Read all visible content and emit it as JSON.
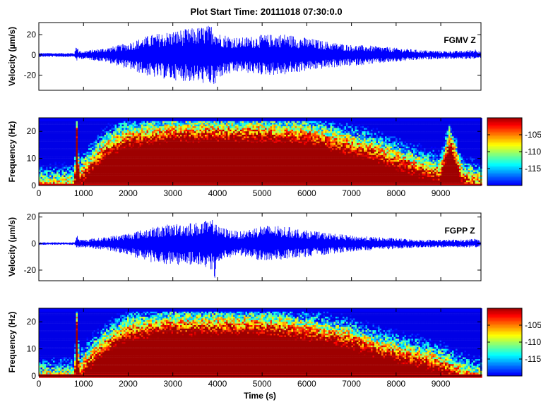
{
  "title": "Plot Start Time: 20111018 07:30:0.0",
  "chart_data": [
    {
      "type": "line",
      "panel": "waveform",
      "station": "FGMV Z",
      "ylabel": "Velocity (µm/s)",
      "xlabel": "",
      "xlim": [
        0,
        9900
      ],
      "ylim": [
        -35,
        32
      ],
      "yticks": [
        "-20",
        "0",
        "20"
      ],
      "ytick_values": [
        -20,
        0,
        20
      ],
      "xtick_values": [
        1000,
        2000,
        3000,
        4000,
        5000,
        6000,
        7000,
        8000,
        9000
      ],
      "show_xtick_labels": false,
      "line_color": "#0000ff",
      "envelope": {
        "x": [
          0,
          800,
          850,
          900,
          1000,
          1500,
          2000,
          2500,
          3000,
          3500,
          3900,
          3950,
          4000,
          4500,
          5000,
          5500,
          6000,
          6500,
          7000,
          7500,
          8000,
          8500,
          9000,
          9500,
          9800,
          9900
        ],
        "upper": [
          2,
          2,
          12,
          4,
          4,
          7,
          12,
          20,
          24,
          27,
          30,
          30,
          22,
          17,
          20,
          21,
          17,
          13,
          10,
          9,
          7,
          5,
          4,
          4,
          6,
          4
        ],
        "lower": [
          -2,
          -2,
          -6,
          -4,
          -4,
          -7,
          -14,
          -22,
          -25,
          -27,
          -30,
          -35,
          -23,
          -17,
          -20,
          -20,
          -16,
          -13,
          -11,
          -9,
          -7,
          -5,
          -4,
          -4,
          -4,
          -3
        ]
      }
    },
    {
      "type": "heatmap",
      "panel": "spectrogram",
      "station": "FGMV Z",
      "ylabel": "Frequency (Hz)",
      "xlabel": "",
      "xlim": [
        0,
        9900
      ],
      "ylim": [
        0,
        25
      ],
      "yticks": [
        "0",
        "10",
        "20"
      ],
      "ytick_values": [
        0,
        10,
        20
      ],
      "xticks": [
        "0",
        "1000",
        "2000",
        "3000",
        "4000",
        "5000",
        "6000",
        "7000",
        "8000",
        "9000"
      ],
      "xtick_values": [
        0,
        1000,
        2000,
        3000,
        4000,
        5000,
        6000,
        7000,
        8000,
        9000
      ],
      "colorbar_ticks": [
        "-105",
        "-110",
        "-115"
      ],
      "colorbar_tick_values": [
        -105,
        -110,
        -115
      ],
      "colorbar_range": [
        -120,
        -100
      ],
      "colormap": "jet",
      "energy_profile": {
        "x": [
          0,
          800,
          850,
          900,
          1100,
          1500,
          2000,
          3000,
          4000,
          5000,
          6000,
          7000,
          7500,
          8000,
          8500,
          9000,
          9200,
          9500,
          9900
        ],
        "top_hz": [
          3,
          3,
          24,
          6,
          10,
          17,
          21,
          23,
          23,
          23,
          22,
          18,
          16,
          13,
          10,
          8,
          20,
          6,
          4
        ]
      }
    },
    {
      "type": "line",
      "panel": "waveform",
      "station": "FGPP Z",
      "ylabel": "Velocity (µm/s)",
      "xlabel": "",
      "xlim": [
        0,
        9900
      ],
      "ylim": [
        -28,
        23
      ],
      "yticks": [
        "-20",
        "0",
        "20"
      ],
      "ytick_values": [
        -20,
        0,
        20
      ],
      "xtick_values": [
        1000,
        2000,
        3000,
        4000,
        5000,
        6000,
        7000,
        8000,
        9000
      ],
      "show_xtick_labels": false,
      "line_color": "#0000ff",
      "envelope": {
        "x": [
          0,
          800,
          850,
          900,
          1000,
          1500,
          2000,
          2500,
          3000,
          3500,
          3900,
          3950,
          4000,
          4500,
          5000,
          5500,
          6000,
          6500,
          7000,
          7500,
          8000,
          8500,
          9000,
          9500,
          9800,
          9900
        ],
        "upper": [
          1,
          1,
          7,
          3,
          3,
          5,
          8,
          12,
          15,
          16,
          18,
          22,
          13,
          9,
          14,
          13,
          10,
          8,
          6,
          5,
          4,
          3,
          3,
          3,
          4,
          2
        ],
        "lower": [
          -1,
          -1,
          -4,
          -3,
          -3,
          -5,
          -9,
          -14,
          -16,
          -17,
          -20,
          -28,
          -14,
          -9,
          -13,
          -12,
          -10,
          -8,
          -6,
          -5,
          -4,
          -3,
          -3,
          -3,
          -3,
          -2
        ]
      }
    },
    {
      "type": "heatmap",
      "panel": "spectrogram",
      "station": "FGPP Z",
      "ylabel": "Frequency (Hz)",
      "xlabel": "Time (s)",
      "xlim": [
        0,
        9900
      ],
      "ylim": [
        0,
        25
      ],
      "yticks": [
        "0",
        "10",
        "20"
      ],
      "ytick_values": [
        0,
        10,
        20
      ],
      "xticks": [
        "0",
        "1000",
        "2000",
        "3000",
        "4000",
        "5000",
        "6000",
        "7000",
        "8000",
        "9000"
      ],
      "xtick_values": [
        0,
        1000,
        2000,
        3000,
        4000,
        5000,
        6000,
        7000,
        8000,
        9000
      ],
      "colorbar_ticks": [
        "-105",
        "-110",
        "-115"
      ],
      "colorbar_tick_values": [
        -105,
        -110,
        -115
      ],
      "colorbar_range": [
        -120,
        -100
      ],
      "colormap": "jet",
      "energy_profile": {
        "x": [
          0,
          800,
          850,
          900,
          1100,
          1500,
          2000,
          3000,
          4000,
          5000,
          6000,
          7000,
          7500,
          8000,
          8500,
          9000,
          9500,
          9900
        ],
        "top_hz": [
          2,
          2,
          24,
          5,
          9,
          15,
          20,
          22,
          22,
          22,
          20,
          17,
          14,
          12,
          10,
          8,
          4,
          2
        ]
      }
    }
  ]
}
